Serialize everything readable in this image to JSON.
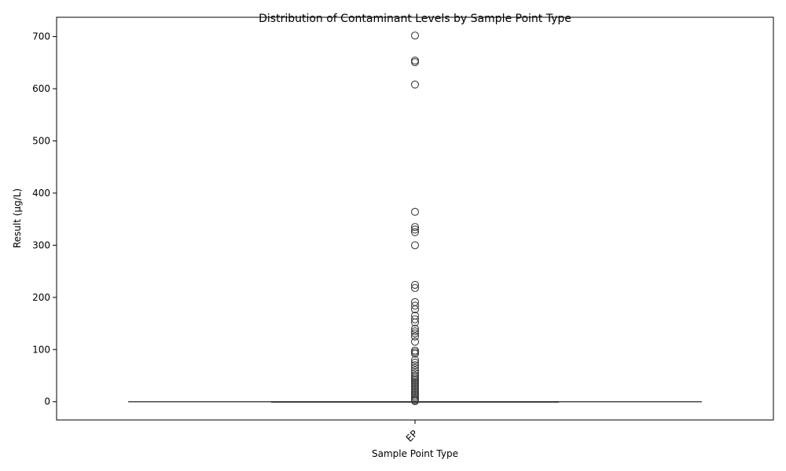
{
  "chart_data": {
    "type": "box",
    "title": "Distribution of Contaminant Levels by Sample Point Type",
    "xlabel": "Sample Point Type",
    "ylabel": "Result (µg/L)",
    "categories": [
      "EP"
    ],
    "ylim": [
      -35,
      737
    ],
    "yticks": [
      0,
      100,
      200,
      300,
      400,
      500,
      600,
      700
    ],
    "grid": false,
    "box": {
      "q1": 0,
      "median": 0,
      "q3": 0,
      "whisker_low": 0,
      "whisker_high": 0
    },
    "outliers": [
      702,
      654,
      651,
      608,
      364,
      335,
      330,
      325,
      300,
      224,
      218,
      191,
      184,
      177,
      165,
      158,
      152,
      140,
      135,
      131,
      125,
      115,
      98,
      95,
      92,
      80,
      75,
      70,
      65,
      60,
      55,
      50,
      47,
      44,
      41,
      38,
      35,
      32,
      29,
      26,
      23,
      20,
      17,
      14,
      11,
      8,
      5,
      3,
      1
    ],
    "colors": {
      "box_edge": "#3f3f3f",
      "outlier_edge": "#3f3f3f"
    }
  }
}
